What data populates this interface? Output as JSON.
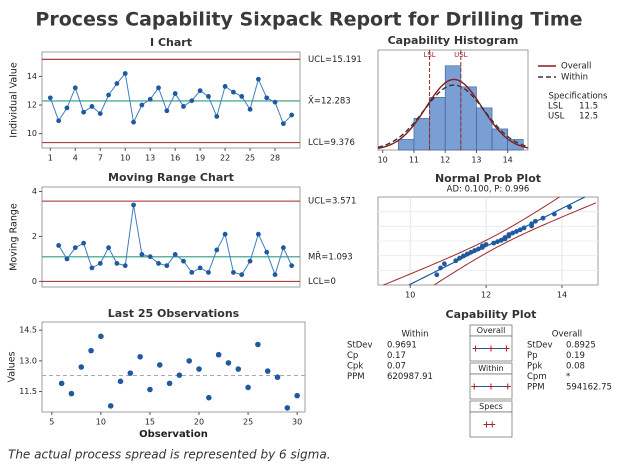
{
  "title": "Process Capability Sixpack Report for Drilling Time",
  "footnote": "The actual process spread is represented by 6 sigma.",
  "chart_data": [
    {
      "type": "control",
      "title": "I Chart",
      "ylabel": "Individual Value",
      "x": [
        1,
        2,
        3,
        4,
        5,
        6,
        7,
        8,
        9,
        10,
        11,
        12,
        13,
        14,
        15,
        16,
        17,
        18,
        19,
        20,
        21,
        22,
        23,
        24,
        25,
        26,
        27,
        28,
        29,
        30
      ],
      "values": [
        12.5,
        10.9,
        11.8,
        13.2,
        11.5,
        11.9,
        11.4,
        12.7,
        13.5,
        14.2,
        10.8,
        12.0,
        12.4,
        13.2,
        11.6,
        12.8,
        11.9,
        12.3,
        13.0,
        12.6,
        11.2,
        13.3,
        12.9,
        12.6,
        11.7,
        13.8,
        12.5,
        12.2,
        10.7,
        11.3
      ],
      "color": "#1f5aa0",
      "xlim": [
        0,
        31
      ],
      "ylim": [
        9.0,
        15.7
      ],
      "xticks": [
        1,
        4,
        7,
        10,
        13,
        16,
        19,
        22,
        25,
        28
      ],
      "yticks": [
        10,
        12,
        14
      ],
      "control_lines": [
        {
          "value": 15.191,
          "label": "UCL=15.191",
          "color": "#a0282b"
        },
        {
          "value": 12.283,
          "label": "X̄=12.283",
          "color": "#2e9a80"
        },
        {
          "value": 9.376,
          "label": "LCL=9.376",
          "color": "#a0282b"
        }
      ]
    },
    {
      "type": "control",
      "title": "Moving Range Chart",
      "ylabel": "Moving Range",
      "x": [
        1,
        2,
        3,
        4,
        5,
        6,
        7,
        8,
        9,
        10,
        11,
        12,
        13,
        14,
        15,
        16,
        17,
        18,
        19,
        20,
        21,
        22,
        23,
        24,
        25,
        26,
        27,
        28,
        29,
        30
      ],
      "values": [
        null,
        1.6,
        1.0,
        1.5,
        1.7,
        0.6,
        0.8,
        1.5,
        0.8,
        0.7,
        3.4,
        1.2,
        1.1,
        0.8,
        0.7,
        1.2,
        0.9,
        0.4,
        0.6,
        0.4,
        1.4,
        2.1,
        0.4,
        0.3,
        0.9,
        2.1,
        1.3,
        0.3,
        1.5,
        0.7
      ],
      "color": "#1f5aa0",
      "xlim": [
        0,
        31
      ],
      "ylim": [
        -0.25,
        4.2
      ],
      "yticks": [
        0,
        2,
        4
      ],
      "control_lines": [
        {
          "value": 3.571,
          "label": "UCL=3.571",
          "color": "#a0282b"
        },
        {
          "value": 1.093,
          "label": "MR̄=1.093",
          "color": "#2e9a80"
        },
        {
          "value": 0,
          "label": "LCL=0",
          "color": "#a0282b"
        }
      ]
    },
    {
      "type": "scatter",
      "title": "Last 25 Observations",
      "xlabel": "Observation",
      "ylabel": "Values",
      "x": [
        6,
        7,
        8,
        9,
        10,
        11,
        12,
        13,
        14,
        15,
        16,
        17,
        18,
        19,
        20,
        21,
        22,
        23,
        24,
        25,
        26,
        27,
        28,
        29,
        30
      ],
      "values": [
        11.9,
        11.4,
        12.7,
        13.5,
        14.2,
        10.8,
        12.0,
        12.4,
        13.2,
        11.6,
        12.8,
        11.9,
        12.3,
        13.0,
        12.6,
        11.2,
        13.3,
        12.9,
        12.6,
        11.7,
        13.8,
        12.5,
        12.2,
        10.7,
        11.3
      ],
      "color": "#1f5aa0",
      "xlim": [
        4,
        30.8
      ],
      "ylim": [
        10.5,
        14.9
      ],
      "xticks": [
        5,
        10,
        15,
        20,
        25,
        30
      ],
      "yticks": [
        11.5,
        {
          "value": 13.0,
          "label": "13.0"
        },
        14.5
      ]
    },
    {
      "type": "histogram",
      "title": "Capability Histogram",
      "bins": [
        10.5,
        11.0,
        11.5,
        12.0,
        12.5,
        13.0,
        13.5,
        14.0,
        14.5
      ],
      "counts": [
        1,
        3,
        5,
        8,
        6,
        4,
        2,
        1
      ],
      "color": "#7a9fd4",
      "xlim": [
        9.85,
        14.65
      ],
      "ylim": [
        0,
        9.5
      ],
      "xticks": [
        10,
        11,
        12,
        13,
        14
      ],
      "series": [
        {
          "name": "Overall",
          "color": "#8b1a1a"
        },
        {
          "name": "Within",
          "color": "#333333"
        }
      ],
      "specifications_title": "Specifications",
      "specs": [
        {
          "name": "LSL",
          "value": 11.5
        },
        {
          "name": "USL",
          "value": 12.5
        }
      ]
    },
    {
      "type": "probability",
      "title": "Normal Prob Plot",
      "subtitle": "AD: 0.100, P: 0.996",
      "x": [
        10.7,
        10.8,
        10.9,
        11.2,
        11.3,
        11.4,
        11.5,
        11.6,
        11.7,
        11.8,
        11.9,
        11.9,
        12.0,
        12.2,
        12.3,
        12.4,
        12.5,
        12.5,
        12.6,
        12.6,
        12.7,
        12.8,
        12.9,
        13.0,
        13.2,
        13.2,
        13.3,
        13.5,
        13.8,
        14.2
      ],
      "color": "#1f5aa0",
      "xlim": [
        9.15,
        14.95
      ],
      "ylim": [
        -2.6,
        2.6
      ],
      "xticks": [
        10,
        12,
        14
      ]
    },
    {
      "type": "capability",
      "title": "Capability Plot",
      "within": {
        "title": "Within",
        "stats": [
          {
            "name": "StDev",
            "value": 0.9691
          },
          {
            "name": "Cp",
            "value": 0.17
          },
          {
            "name": "Cpk",
            "value": 0.07
          },
          {
            "name": "PPM",
            "value": 620987.91
          }
        ]
      },
      "overall": {
        "title": "Overall",
        "stats": [
          {
            "name": "StDev",
            "value": 0.8925
          },
          {
            "name": "Pp",
            "value": 0.19
          },
          {
            "name": "Ppk",
            "value": 0.08
          },
          {
            "name": "Cpm",
            "value": "*"
          },
          {
            "name": "PPM",
            "value": 594162.75
          }
        ]
      },
      "boxes": [
        "Overall",
        "Within",
        "Specs"
      ]
    }
  ]
}
